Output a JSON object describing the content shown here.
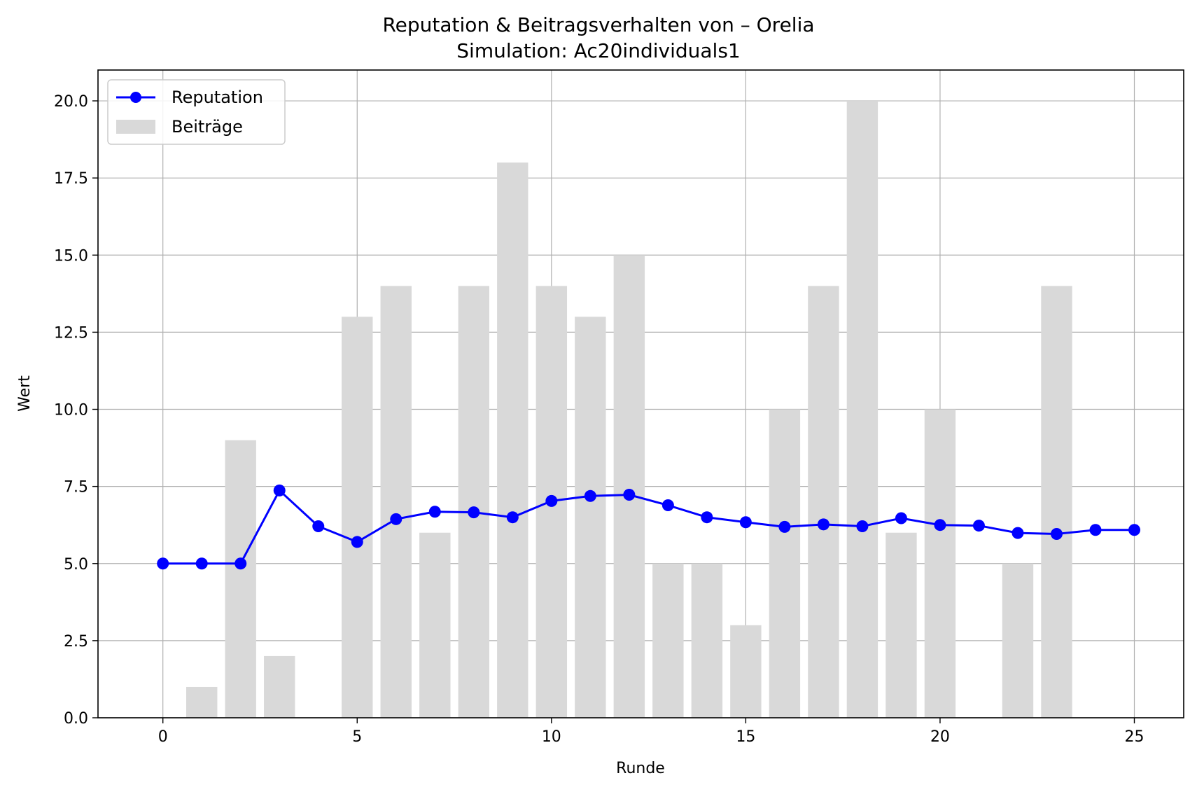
{
  "chart_data": {
    "type": "bar",
    "title": "Reputation & Beitragsverhalten von – Orelia",
    "subtitle": "Simulation: Ac20individuals1",
    "xlabel": "Runde",
    "ylabel": "Wert",
    "xlim": [
      -1.67,
      26.27
    ],
    "ylim": [
      0,
      21
    ],
    "xticks": [
      "0",
      "5",
      "10",
      "15",
      "20",
      "25"
    ],
    "yticks": [
      "0.0",
      "2.5",
      "5.0",
      "7.5",
      "10.0",
      "12.5",
      "15.0",
      "17.5",
      "20.0"
    ],
    "grid": true,
    "legend_position": "upper-left",
    "series": [
      {
        "name": "Reputation",
        "type": "line",
        "color": "#0000ff",
        "x": [
          0,
          1,
          2,
          3,
          4,
          5,
          6,
          7,
          8,
          9,
          10,
          11,
          12,
          13,
          14,
          15,
          16,
          17,
          18,
          19,
          20,
          21,
          22,
          23,
          24,
          25
        ],
        "values": [
          5.0,
          5.0,
          5.0,
          7.37,
          6.21,
          5.7,
          6.44,
          6.68,
          6.66,
          6.5,
          7.03,
          7.19,
          7.23,
          6.89,
          6.5,
          6.34,
          6.19,
          6.27,
          6.21,
          6.47,
          6.25,
          6.23,
          5.99,
          5.96,
          6.09,
          6.09
        ]
      },
      {
        "name": "Beiträge",
        "type": "bar",
        "color": "#d9d9d9",
        "x": [
          0,
          1,
          2,
          3,
          4,
          5,
          6,
          7,
          8,
          9,
          10,
          11,
          12,
          13,
          14,
          15,
          16,
          17,
          18,
          19,
          20,
          21,
          22,
          23,
          24,
          25
        ],
        "values": [
          0,
          1,
          9,
          2,
          0,
          13,
          14,
          6,
          14,
          18,
          14,
          13,
          15,
          5,
          5,
          3,
          10,
          14,
          20,
          6,
          10,
          0,
          5,
          14,
          0,
          0
        ]
      }
    ]
  }
}
